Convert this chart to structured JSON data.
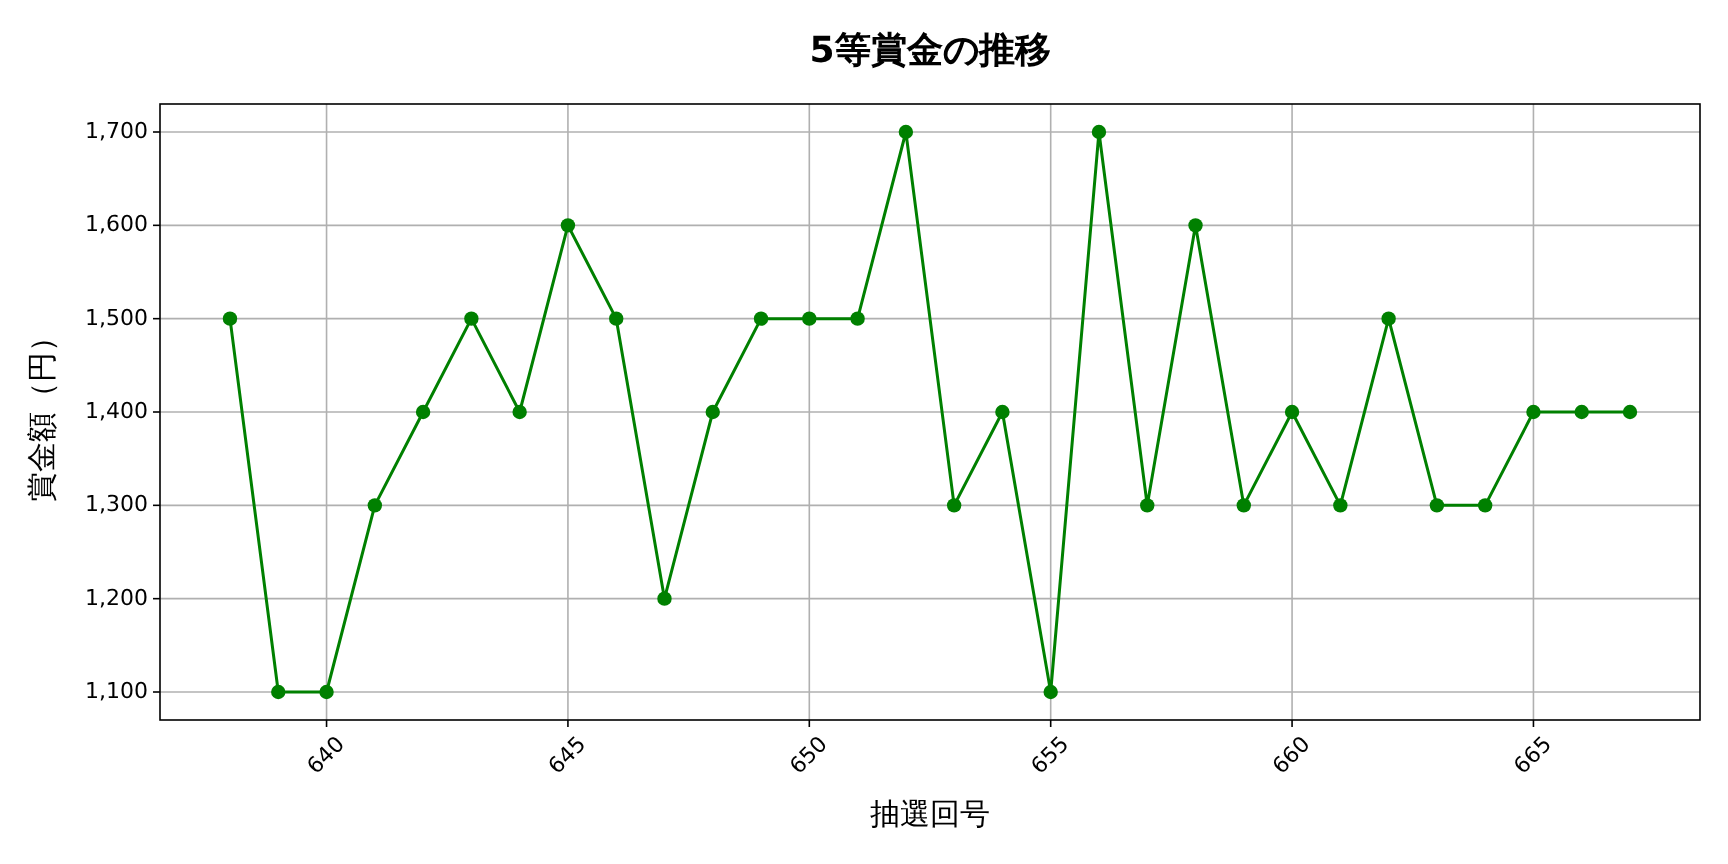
{
  "chart_data": {
    "type": "line",
    "title": "5等賞金の推移",
    "xlabel": "抽選回号",
    "ylabel": "賞金額（円）",
    "x": [
      638,
      639,
      640,
      641,
      642,
      643,
      644,
      645,
      646,
      647,
      648,
      649,
      650,
      651,
      652,
      653,
      654,
      655,
      656,
      657,
      658,
      659,
      660,
      661,
      662,
      663,
      664,
      665,
      666,
      667
    ],
    "values": [
      1500,
      1100,
      1100,
      1300,
      1400,
      1500,
      1400,
      1600,
      1500,
      1200,
      1400,
      1500,
      1500,
      1500,
      1700,
      1300,
      1400,
      1100,
      1700,
      1300,
      1600,
      1300,
      1400,
      1300,
      1500,
      1300,
      1300,
      1400,
      1400,
      1400
    ],
    "color": "#008000",
    "marker": "circle",
    "grid": true,
    "xlim": [
      636.55,
      668.45
    ],
    "xticks": [
      640,
      645,
      650,
      655,
      660,
      665
    ],
    "ylim": [
      1070,
      1730
    ],
    "yticks": [
      {
        "value": 1100,
        "label": "1,100"
      },
      {
        "value": 1200,
        "label": "1,200"
      },
      {
        "value": 1300,
        "label": "1,300"
      },
      {
        "value": 1400,
        "label": "1,400"
      },
      {
        "value": 1500,
        "label": "1,500"
      },
      {
        "value": 1600,
        "label": "1,600"
      },
      {
        "value": 1700,
        "label": "1,700"
      }
    ]
  }
}
